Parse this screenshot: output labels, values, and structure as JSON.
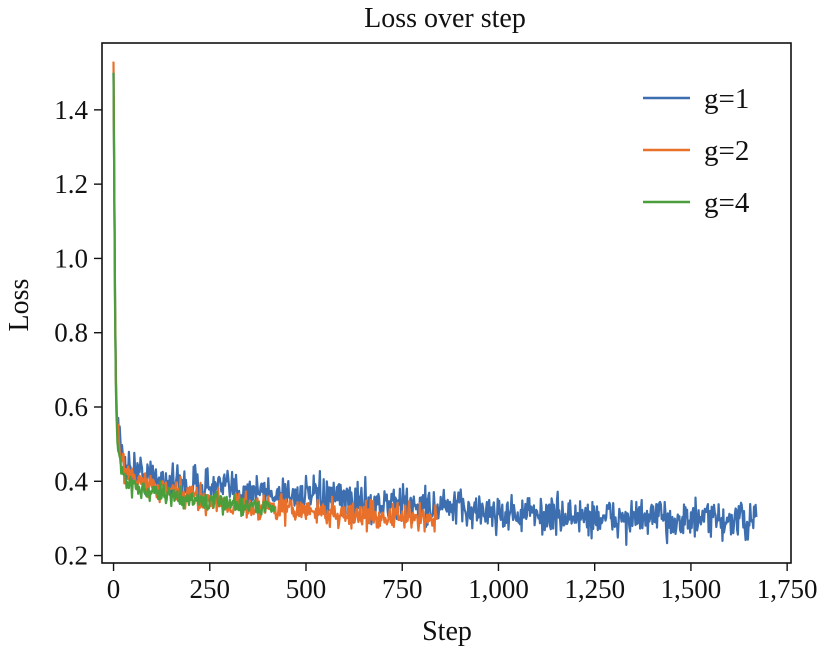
{
  "chart_data": {
    "type": "line",
    "title": "Loss over step",
    "xlabel": "Step",
    "ylabel": "Loss",
    "xlim": [
      -30,
      1760
    ],
    "ylim": [
      0.18,
      1.58
    ],
    "xticks": [
      0,
      250,
      500,
      750,
      1000,
      1250,
      1500,
      1750
    ],
    "xtick_labels": [
      "0",
      "250",
      "500",
      "750",
      "1,000",
      "1,250",
      "1,500",
      "1,750"
    ],
    "yticks": [
      0.2,
      0.4,
      0.6,
      0.8,
      1.0,
      1.2,
      1.4
    ],
    "ytick_labels": [
      "0.2",
      "0.4",
      "0.6",
      "0.8",
      "1.0",
      "1.2",
      "1.4"
    ],
    "grid": false,
    "legend_position": "top-right",
    "series": [
      {
        "name": "g=1",
        "color": "#3d6fb0",
        "x": [
          0,
          5,
          10,
          20,
          30,
          50,
          75,
          100,
          150,
          200,
          250,
          300,
          400,
          500,
          600,
          700,
          800,
          900,
          1000,
          1100,
          1200,
          1300,
          1400,
          1500,
          1600,
          1670
        ],
        "y": [
          1.5,
          0.72,
          0.55,
          0.48,
          0.45,
          0.43,
          0.42,
          0.41,
          0.4,
          0.39,
          0.385,
          0.38,
          0.37,
          0.36,
          0.35,
          0.34,
          0.335,
          0.325,
          0.315,
          0.31,
          0.305,
          0.3,
          0.3,
          0.295,
          0.295,
          0.29
        ],
        "noise": 0.025
      },
      {
        "name": "g=2",
        "color": "#e8702a",
        "x": [
          0,
          5,
          10,
          20,
          30,
          50,
          75,
          100,
          150,
          200,
          250,
          300,
          400,
          500,
          600,
          700,
          800,
          840
        ],
        "y": [
          1.53,
          0.7,
          0.54,
          0.46,
          0.43,
          0.41,
          0.395,
          0.385,
          0.37,
          0.36,
          0.35,
          0.34,
          0.33,
          0.32,
          0.31,
          0.305,
          0.3,
          0.3
        ],
        "noise": 0.018
      },
      {
        "name": "g=4",
        "color": "#4a9e3c",
        "x": [
          0,
          5,
          10,
          20,
          30,
          50,
          75,
          100,
          150,
          200,
          250,
          300,
          350,
          420
        ],
        "y": [
          1.5,
          0.68,
          0.5,
          0.43,
          0.41,
          0.39,
          0.375,
          0.37,
          0.36,
          0.35,
          0.345,
          0.34,
          0.335,
          0.33
        ],
        "noise": 0.012
      }
    ]
  }
}
